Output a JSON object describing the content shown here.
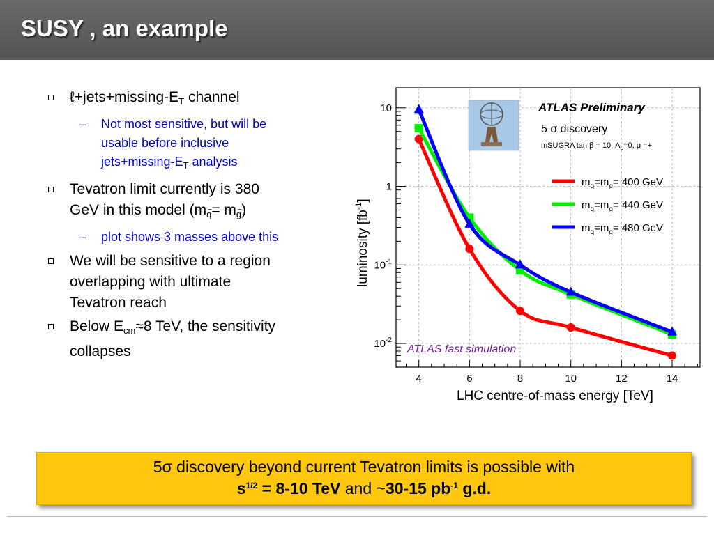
{
  "slide": {
    "title": "SUSY ,   an  example"
  },
  "bullets": {
    "b1": {
      "pre": "ℓ+jets+missing-E",
      "sub": "T",
      "post": " channel"
    },
    "b1_sub": {
      "line1": "Not most sensitive, but will be",
      "line2": "usable before inclusive",
      "line3_pre": "jets+missing-E",
      "line3_sub": "T",
      "line3_post": " analysis"
    },
    "b2": {
      "line1": "Tevatron limit currently is 380",
      "line2_pre": "GeV in this model (m",
      "line2_s1": "q",
      "line2_mid": "= m",
      "line2_s2": "g",
      "line2_post": ")"
    },
    "b2_sub": {
      "text": "plot shows 3 masses above this"
    },
    "b3": {
      "line1": "We will be sensitive to a region",
      "line2": "overlapping with ultimate",
      "line3": "Tevatron reach"
    },
    "b4": {
      "pre": "Below E",
      "sub": "cm",
      "post": "≈8 TeV, the sensitivity",
      "line2": "collapses"
    }
  },
  "banner": {
    "line1_pre": "5",
    "line1_sigma": "σ",
    "line1_post": " discovery beyond current Tevatron limits is possible with",
    "s_label": "s",
    "s_exp": "1/2",
    "s_value": " = 8-10 TeV",
    "and_text": " and ~",
    "pb_value": "30-15 pb",
    "pb_exp": "-1",
    "gd": " g.d."
  },
  "chart_data": {
    "type": "line",
    "title": "ATLAS Preliminary",
    "subtitle": "5 σ discovery",
    "model": "mSUGRA tan β = 10, A",
    "model_sub": "0",
    "model_post": "=0, μ =+",
    "annotation": "ATLAS fast simulation",
    "xlabel": "LHC centre-of-mass energy [TeV]",
    "ylabel": "luminosity [fb",
    "ylabel_exp": "-1",
    "ylabel_post": "]",
    "x_scale": "linear",
    "y_scale": "log",
    "xlim": [
      3.1,
      15.1
    ],
    "ylim": [
      0.005,
      18
    ],
    "x_ticks": [
      4,
      6,
      8,
      10,
      12,
      14
    ],
    "y_ticks": [
      {
        "value": 0.01,
        "base": "10",
        "exp": "-2"
      },
      {
        "value": 0.1,
        "base": "10",
        "exp": "-1"
      },
      {
        "value": 1,
        "base": "1",
        "exp": ""
      },
      {
        "value": 10,
        "base": "10",
        "exp": ""
      }
    ],
    "grid": true,
    "legend_position": "right",
    "series": [
      {
        "name": "m",
        "name_s1": "q",
        "name_mid": "=m",
        "name_s2": "g",
        "name_post": "= 400 GeV",
        "color": "#ff0000",
        "marker": "circle",
        "x": [
          4,
          6,
          8,
          10,
          14
        ],
        "y": [
          4.0,
          0.16,
          0.026,
          0.016,
          0.007
        ]
      },
      {
        "name": "m",
        "name_s1": "q",
        "name_mid": "=m",
        "name_s2": "g",
        "name_post": "= 440 GeV",
        "color": "#00ee00",
        "marker": "square",
        "x": [
          4,
          6,
          8,
          10,
          14
        ],
        "y": [
          5.5,
          0.4,
          0.085,
          0.042,
          0.013
        ]
      },
      {
        "name": "m",
        "name_s1": "q",
        "name_mid": "=m",
        "name_s2": "g",
        "name_post": "= 480 GeV",
        "color": "#0000ff",
        "marker": "triangle",
        "x": [
          4,
          6,
          8,
          10,
          14
        ],
        "y": [
          9.5,
          0.33,
          0.1,
          0.045,
          0.014
        ]
      }
    ]
  }
}
